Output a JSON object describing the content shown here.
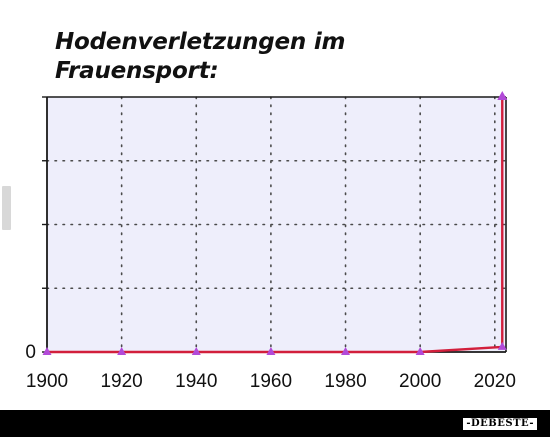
{
  "chart_data": {
    "type": "line",
    "title_lines": [
      "Hodenverletzungen im",
      "Frauensport:"
    ],
    "x_ticks": [
      1900,
      1920,
      1940,
      1960,
      1980,
      2000,
      2020
    ],
    "y_ticks": [
      "0"
    ],
    "xlim": [
      1900,
      2023
    ],
    "ylim": [
      0,
      100
    ],
    "grid": true,
    "grid_style": "dotted",
    "series": [
      {
        "points": [
          {
            "x": 1900,
            "y": 0
          },
          {
            "x": 1920,
            "y": 0
          },
          {
            "x": 1940,
            "y": 0
          },
          {
            "x": 1960,
            "y": 0
          },
          {
            "x": 1980,
            "y": 0
          },
          {
            "x": 2000,
            "y": 0
          },
          {
            "x": 2022,
            "y": 2
          },
          {
            "x": 2022,
            "y": 100
          }
        ],
        "line_color": "#d21f3c",
        "marker_color": "#b24ad8"
      }
    ]
  },
  "footer": {
    "logo_text": "-DEBESTE-"
  },
  "colors": {
    "plot_background": "#eeeefb",
    "grid": "#4a4a4a",
    "axis": "#1a1a1a"
  }
}
